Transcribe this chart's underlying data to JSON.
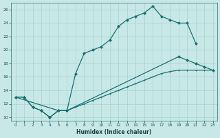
{
  "xlabel": "Humidex (Indice chaleur)",
  "background_color": "#c8e8e8",
  "grid_color": "#a8d0d0",
  "line_color": "#1a7070",
  "xlim": [
    -0.5,
    23.5
  ],
  "ylim": [
    9.5,
    27
  ],
  "yticks": [
    10,
    12,
    14,
    16,
    18,
    20,
    22,
    24,
    26
  ],
  "xticks": [
    0,
    1,
    2,
    3,
    4,
    5,
    6,
    7,
    8,
    9,
    10,
    11,
    12,
    13,
    14,
    15,
    16,
    17,
    18,
    19,
    20,
    21,
    22,
    23
  ],
  "curve1_x": [
    0,
    1,
    2,
    3,
    4,
    5,
    6,
    7,
    8,
    9,
    10,
    11,
    12,
    13,
    14,
    15,
    16,
    17,
    18,
    19,
    20,
    21
  ],
  "curve1_y": [
    13,
    13,
    11.5,
    11,
    10,
    11,
    11,
    16.5,
    19.5,
    20,
    20.5,
    21.5,
    23.5,
    24.5,
    25,
    25.5,
    26.5,
    25,
    24.5,
    24,
    24,
    21
  ],
  "curve2_x": [
    0,
    1,
    2,
    3,
    4,
    5,
    6,
    19,
    20,
    21,
    22,
    23
  ],
  "curve2_y": [
    13,
    13,
    11.5,
    11,
    10,
    11,
    11,
    19,
    18.5,
    18,
    17.5,
    17
  ],
  "curve3_x": [
    0,
    5,
    6,
    7,
    8,
    9,
    10,
    11,
    12,
    13,
    14,
    15,
    16,
    17,
    18,
    19,
    20,
    21,
    22,
    23
  ],
  "curve3_y": [
    13,
    11,
    11,
    11.5,
    12,
    12.5,
    13,
    13.5,
    14,
    14.5,
    15,
    15.5,
    16,
    16.5,
    16.8,
    17,
    17,
    17,
    17,
    17
  ]
}
